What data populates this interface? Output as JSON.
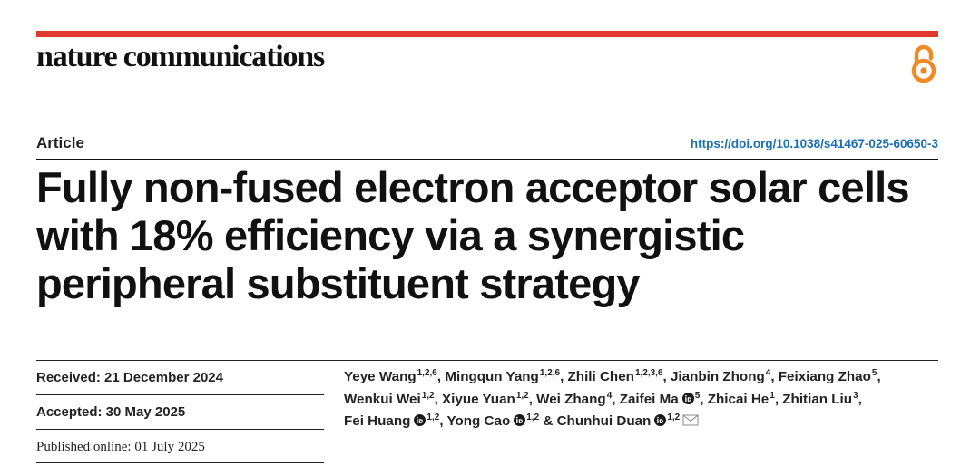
{
  "header": {
    "journal_name": "nature communications",
    "accent_color": "#e03a2f",
    "open_access_icon": "open-access-icon"
  },
  "article": {
    "type": "Article",
    "doi": "https://doi.org/10.1038/s41467-025-60650-3",
    "title": "Fully non-fused electron acceptor solar cells with 18% efficiency via a synergistic peripheral substituent strategy"
  },
  "dates": {
    "received": "Received: 21 December 2024",
    "accepted": "Accepted: 30 May 2025",
    "published": "Published online: 01 July 2025"
  },
  "authors": [
    {
      "name": "Yeye Wang",
      "affil": "1,2,6",
      "orcid": false,
      "email": false
    },
    {
      "name": "Mingqun Yang",
      "affil": "1,2,6",
      "orcid": false,
      "email": false
    },
    {
      "name": "Zhili Chen",
      "affil": "1,2,3,6",
      "orcid": false,
      "email": false
    },
    {
      "name": "Jianbin Zhong",
      "affil": "4",
      "orcid": false,
      "email": false
    },
    {
      "name": "Feixiang Zhao",
      "affil": "5",
      "orcid": false,
      "email": false
    },
    {
      "name": "Wenkui Wei",
      "affil": "1,2",
      "orcid": false,
      "email": false
    },
    {
      "name": "Xiyue Yuan",
      "affil": "1,2",
      "orcid": false,
      "email": false
    },
    {
      "name": "Wei Zhang",
      "affil": "4",
      "orcid": false,
      "email": false
    },
    {
      "name": "Zaifei Ma",
      "affil": "5",
      "orcid": true,
      "email": false
    },
    {
      "name": "Zhicai He",
      "affil": "1",
      "orcid": false,
      "email": false
    },
    {
      "name": "Zhitian Liu",
      "affil": "3",
      "orcid": false,
      "email": false
    },
    {
      "name": "Fei Huang",
      "affil": "1,2",
      "orcid": true,
      "email": false
    },
    {
      "name": "Yong Cao",
      "affil": "1,2",
      "orcid": true,
      "email": false
    },
    {
      "name": "Chunhui Duan",
      "affil": "1,2",
      "orcid": true,
      "email": true
    }
  ],
  "author_separator": ", ",
  "author_last_separator": " & "
}
